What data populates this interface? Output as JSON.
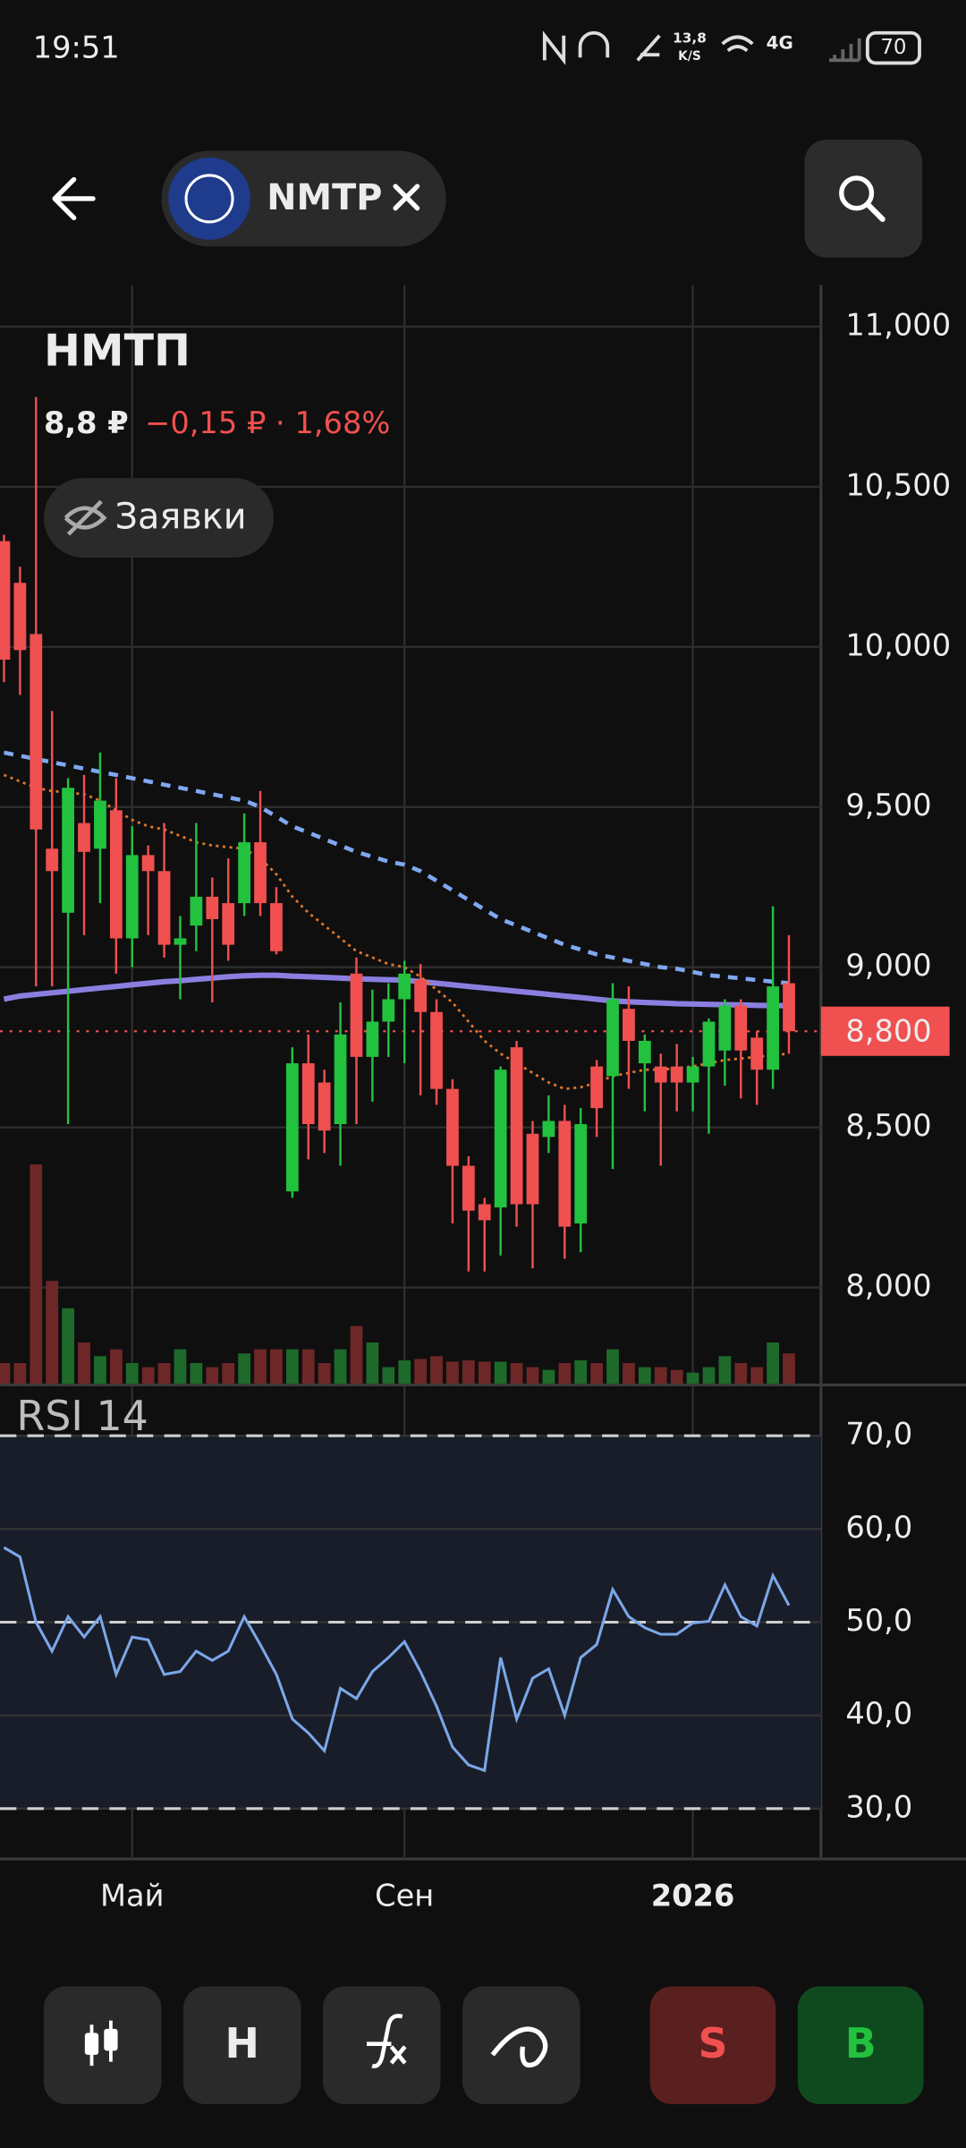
{
  "status_bar": {
    "time": "19:51",
    "net_speed": "13,8",
    "net_unit": "K/S",
    "network": "4G",
    "battery": "70"
  },
  "header": {
    "ticker": "NMTP"
  },
  "instrument": {
    "name": "НМТП",
    "price": "8,8 ₽",
    "change": "−0,15 ₽ · 1,68%",
    "orders_button": "Заявки"
  },
  "toolbar": {
    "heikin": "H",
    "sell": "S",
    "buy": "B"
  },
  "chart_data": [
    {
      "type": "candlestick",
      "categories": [
        null,
        null,
        null,
        null,
        null,
        null,
        null,
        null,
        "Май",
        null,
        null,
        null,
        null,
        null,
        null,
        null,
        null,
        null,
        null,
        null,
        null,
        null,
        null,
        null,
        null,
        "Сен",
        null,
        null,
        null,
        null,
        null,
        null,
        null,
        null,
        null,
        null,
        null,
        null,
        null,
        null,
        null,
        null,
        null,
        "2026",
        null,
        null,
        null,
        null,
        null,
        null
      ],
      "open": [
        10330,
        10200,
        10040,
        9370,
        9170,
        9450,
        9370,
        9490,
        9090,
        9350,
        9300,
        9070,
        9130,
        9220,
        9200,
        9200,
        9390,
        9200,
        8300,
        8700,
        8640,
        8510,
        8980,
        8720,
        8830,
        8900,
        8960,
        8860,
        8620,
        8380,
        8260,
        8250,
        8750,
        8480,
        8470,
        8520,
        8200,
        8690,
        8660,
        8870,
        8700,
        8690,
        8690,
        8640,
        8690,
        8740,
        8880,
        8780,
        8680,
        8950
      ],
      "high": [
        10350,
        10250,
        10780,
        9800,
        9590,
        9600,
        9670,
        9590,
        9440,
        9380,
        9450,
        9160,
        9450,
        9280,
        9340,
        9480,
        9550,
        9250,
        8750,
        8790,
        8680,
        8890,
        9030,
        8930,
        8950,
        9020,
        9010,
        8900,
        8650,
        8410,
        8280,
        8690,
        8770,
        8520,
        8600,
        8570,
        8560,
        8710,
        8950,
        8940,
        8790,
        8730,
        8760,
        8720,
        8840,
        8900,
        8900,
        8800,
        9190,
        9100
      ],
      "low": [
        9890,
        9850,
        8940,
        8940,
        8510,
        9100,
        9200,
        8980,
        9000,
        9100,
        9030,
        8900,
        9050,
        8890,
        9020,
        9160,
        9160,
        9040,
        8280,
        8400,
        8420,
        8380,
        8510,
        8580,
        8720,
        8700,
        8600,
        8570,
        8200,
        8050,
        8050,
        8100,
        8190,
        8060,
        8420,
        8090,
        8110,
        8470,
        8370,
        8620,
        8550,
        8380,
        8550,
        8550,
        8480,
        8630,
        8590,
        8570,
        8620,
        8730
      ],
      "close": [
        9960,
        9990,
        9430,
        9300,
        9560,
        9360,
        9520,
        9090,
        9350,
        9300,
        9070,
        9090,
        9220,
        9150,
        9070,
        9390,
        9200,
        9050,
        8700,
        8510,
        8490,
        8790,
        8720,
        8830,
        8900,
        8980,
        8860,
        8620,
        8380,
        8240,
        8210,
        8680,
        8260,
        8260,
        8520,
        8190,
        8510,
        8560,
        8900,
        8770,
        8770,
        8640,
        8640,
        8690,
        8830,
        8880,
        8740,
        8680,
        8940,
        8800
      ],
      "volume": [
        15,
        15,
        160,
        75,
        55,
        30,
        20,
        25,
        15,
        12,
        15,
        25,
        15,
        12,
        15,
        22,
        25,
        25,
        25,
        25,
        15,
        25,
        42,
        30,
        12,
        17,
        18,
        20,
        16,
        17,
        16,
        16,
        15,
        12,
        10,
        15,
        17,
        15,
        25,
        15,
        12,
        12,
        10,
        8,
        12,
        20,
        15,
        12,
        30,
        22
      ],
      "volume_lim": [
        0,
        200
      ],
      "up_color": "#22c23f",
      "down_color": "#f0504f",
      "volume_up_color": "#1e6a2b",
      "volume_down_color": "#6e2727",
      "overlays": [
        {
          "color": "#7fa8f0",
          "style": "dashed",
          "values": [
            9670,
            9660,
            9650,
            9640,
            9630,
            9620,
            9610,
            9600,
            9590,
            9580,
            9570,
            9560,
            9550,
            9540,
            9530,
            9520,
            9500,
            9470,
            9440,
            9420,
            9400,
            9380,
            9360,
            9345,
            9330,
            9320,
            9300,
            9270,
            9240,
            9210,
            9180,
            9150,
            9130,
            9110,
            9090,
            9070,
            9055,
            9040,
            9030,
            9020,
            9010,
            9000,
            8995,
            8985,
            8975,
            8970,
            8965,
            8960,
            8955,
            8950
          ]
        },
        {
          "color": "#8a7fe0",
          "style": "solid",
          "values": [
            8900,
            8910,
            8915,
            8920,
            8925,
            8930,
            8935,
            8940,
            8945,
            8950,
            8955,
            8958,
            8962,
            8966,
            8970,
            8973,
            8975,
            8975,
            8972,
            8970,
            8968,
            8966,
            8964,
            8962,
            8961,
            8960,
            8955,
            8950,
            8945,
            8940,
            8935,
            8930,
            8925,
            8920,
            8915,
            8910,
            8905,
            8900,
            8895,
            8892,
            8890,
            8888,
            8886,
            8885,
            8884,
            8883,
            8882,
            8881,
            8880,
            8880
          ]
        },
        {
          "color": "#e0782a",
          "style": "dotted",
          "values": [
            9600,
            9580,
            9560,
            9550,
            9545,
            9540,
            9520,
            9490,
            9460,
            9440,
            9430,
            9410,
            9390,
            9380,
            9375,
            9370,
            9340,
            9290,
            9220,
            9170,
            9130,
            9090,
            9050,
            9030,
            9010,
            9000,
            8970,
            8930,
            8890,
            8830,
            8770,
            8730,
            8700,
            8670,
            8640,
            8620,
            8625,
            8640,
            8660,
            8670,
            8680,
            8680,
            8685,
            8690,
            8700,
            8710,
            8715,
            8720,
            8725,
            8730
          ]
        }
      ],
      "last_price": {
        "value": 8800,
        "label": "8,800",
        "color": "#f0504f"
      },
      "ylim": [
        7700,
        11130
      ],
      "yticks": [
        {
          "value": 8000,
          "label": "8,000"
        },
        {
          "value": 8500,
          "label": "8,500"
        },
        {
          "value": 9000,
          "label": "9,000"
        },
        {
          "value": 9500,
          "label": "9,500"
        },
        {
          "value": 10000,
          "label": "10,000"
        },
        {
          "value": 10500,
          "label": "10,500"
        },
        {
          "value": 11000,
          "label": "11,000"
        }
      ],
      "grid": true
    },
    {
      "type": "line",
      "title": "RSI 14",
      "color": "#7ba7e8",
      "values": [
        58,
        57,
        50,
        46.9,
        50.6,
        48.4,
        50.6,
        44.4,
        48.4,
        48.1,
        44.4,
        44.7,
        46.9,
        45.9,
        46.9,
        50.6,
        47.6,
        44.4,
        39.6,
        38.1,
        36.2,
        42.9,
        41.8,
        44.7,
        46.2,
        47.9,
        44.7,
        41,
        36.6,
        34.7,
        34.1,
        46.2,
        39.6,
        44,
        45,
        40,
        46.2,
        47.6,
        53.5,
        50.6,
        49.4,
        48.7,
        48.7,
        49.9,
        50.1,
        54,
        50.6,
        49.6,
        55,
        51.8
      ],
      "band": [
        30,
        70
      ],
      "band_color": "#191d29",
      "levels": [
        70,
        50,
        30
      ],
      "ylim": [
        24.6,
        75.3
      ],
      "yticks": [
        {
          "value": 30,
          "label": "30,0"
        },
        {
          "value": 40,
          "label": "40,0"
        },
        {
          "value": 50,
          "label": "50,0"
        },
        {
          "value": 60,
          "label": "60,0"
        },
        {
          "value": 70,
          "label": "70,0"
        }
      ],
      "grid": true
    }
  ]
}
